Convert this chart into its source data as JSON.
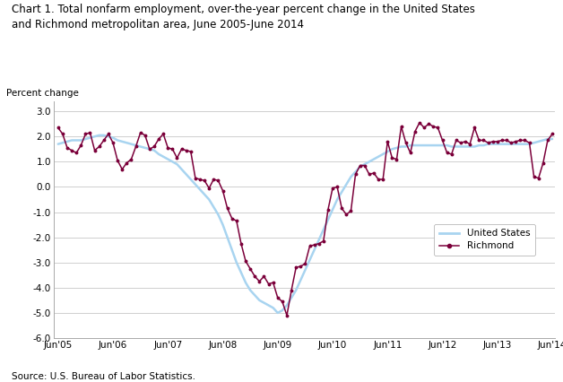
{
  "title": "Chart 1. Total nonfarm employment, over-the-year percent change in the United States\nand Richmond metropolitan area, June 2005-June 2014",
  "ylabel": "Percent change",
  "source": "Source: U.S. Bureau of Labor Statistics.",
  "ylim": [
    -6.0,
    3.4
  ],
  "yticks": [
    3.0,
    2.0,
    1.0,
    0.0,
    -1.0,
    -2.0,
    -3.0,
    -4.0,
    -5.0,
    -6.0
  ],
  "xtick_labels": [
    "Jun'05",
    "Jun'06",
    "Jun'07",
    "Jun'08",
    "Jun'09",
    "Jun'10",
    "Jun'11",
    "Jun'12",
    "Jun'13",
    "Jun'14"
  ],
  "us_color": "#a8d4f0",
  "richmond_color": "#7b003a",
  "legend_labels": [
    "United States",
    "Richmond"
  ],
  "us_vals": [
    1.7,
    1.75,
    1.8,
    1.85,
    1.85,
    1.85,
    1.9,
    1.95,
    2.0,
    2.05,
    2.05,
    2.0,
    1.95,
    1.85,
    1.8,
    1.75,
    1.7,
    1.65,
    1.6,
    1.55,
    1.5,
    1.45,
    1.3,
    1.2,
    1.1,
    1.0,
    0.9,
    0.7,
    0.5,
    0.3,
    0.1,
    -0.1,
    -0.3,
    -0.5,
    -0.8,
    -1.1,
    -1.5,
    -2.0,
    -2.5,
    -3.0,
    -3.4,
    -3.8,
    -4.1,
    -4.3,
    -4.5,
    -4.6,
    -4.7,
    -4.8,
    -5.0,
    -4.9,
    -4.7,
    -4.4,
    -4.1,
    -3.7,
    -3.3,
    -2.9,
    -2.5,
    -2.1,
    -1.7,
    -1.3,
    -0.9,
    -0.5,
    -0.2,
    0.1,
    0.4,
    0.6,
    0.8,
    0.9,
    1.0,
    1.1,
    1.2,
    1.3,
    1.4,
    1.5,
    1.55,
    1.6,
    1.6,
    1.65,
    1.65,
    1.65,
    1.65,
    1.65,
    1.65,
    1.65,
    1.65,
    1.65,
    1.6,
    1.6,
    1.6,
    1.6,
    1.6,
    1.6,
    1.65,
    1.65,
    1.7,
    1.7,
    1.7,
    1.7,
    1.7,
    1.7,
    1.7,
    1.7,
    1.7,
    1.7,
    1.75,
    1.8,
    1.85,
    1.9,
    1.9
  ],
  "richmond_vals": [
    2.35,
    2.1,
    1.55,
    1.45,
    1.35,
    1.65,
    2.1,
    2.15,
    1.45,
    1.6,
    1.85,
    2.1,
    1.75,
    1.05,
    0.7,
    0.95,
    1.1,
    1.6,
    2.15,
    2.05,
    1.5,
    1.6,
    1.9,
    2.1,
    1.55,
    1.5,
    1.15,
    1.5,
    1.45,
    1.4,
    0.35,
    0.3,
    0.25,
    -0.05,
    0.3,
    0.25,
    -0.15,
    -0.85,
    -1.25,
    -1.35,
    -2.25,
    -2.95,
    -3.25,
    -3.55,
    -3.75,
    -3.55,
    -3.85,
    -3.8,
    -4.4,
    -4.55,
    -5.1,
    -4.1,
    -3.2,
    -3.15,
    -3.05,
    -2.35,
    -2.3,
    -2.25,
    -2.15,
    -0.9,
    -0.05,
    0.0,
    -0.85,
    -1.1,
    -0.95,
    0.5,
    0.85,
    0.85,
    0.5,
    0.55,
    0.3,
    0.3,
    1.8,
    1.15,
    1.1,
    2.4,
    1.75,
    1.35,
    2.2,
    2.55,
    2.35,
    2.5,
    2.4,
    2.35,
    1.85,
    1.35,
    1.3,
    1.85,
    1.75,
    1.8,
    1.7,
    2.35,
    1.85,
    1.85,
    1.75,
    1.8,
    1.8,
    1.85,
    1.85,
    1.75,
    1.8,
    1.85,
    1.85,
    1.75,
    0.4,
    0.35,
    0.95,
    1.85,
    2.1
  ]
}
